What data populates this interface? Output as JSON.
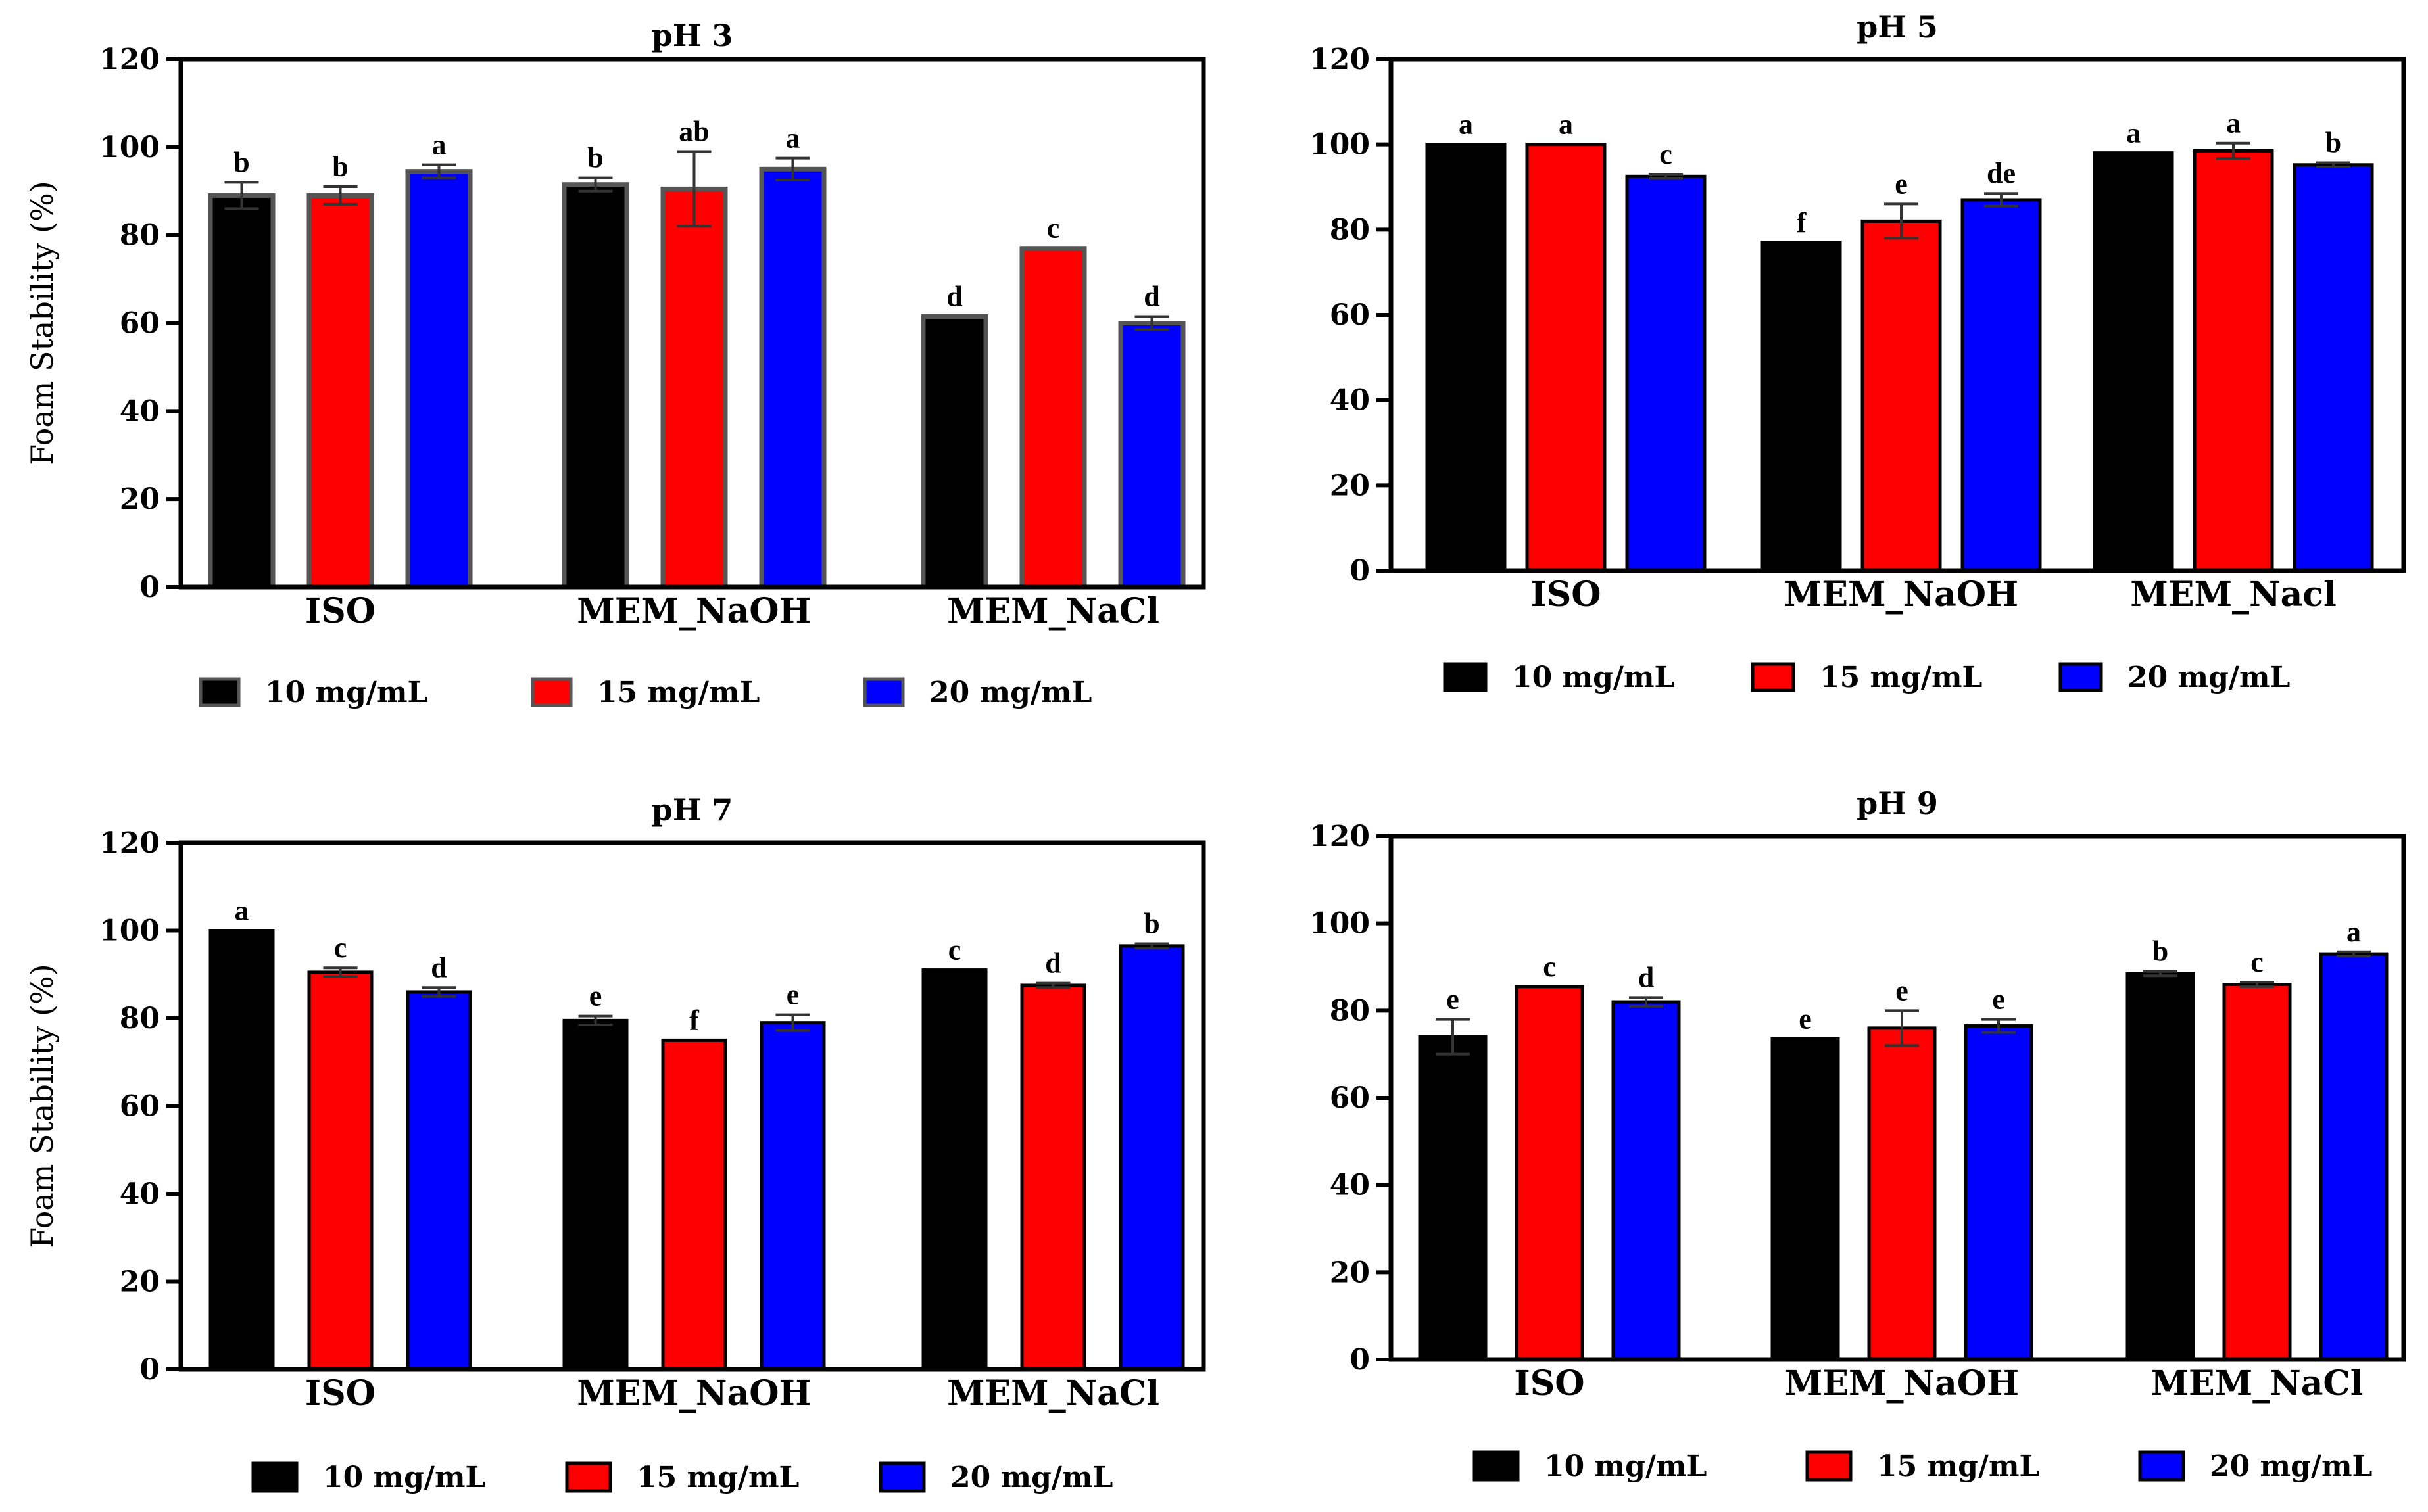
{
  "colors": {
    "s10": "#000000",
    "s15": "#ff0000",
    "s20": "#0000ff"
  },
  "chart_data": [
    {
      "type": "bar",
      "title": "pH 3",
      "ylabel": "Foam Stability (%)",
      "xlabel": "",
      "ylim": [
        0,
        120
      ],
      "yticks": [
        "0",
        "20",
        "40",
        "60",
        "80",
        "100",
        "120"
      ],
      "categories": [
        "ISO",
        "MEM_NaOH",
        "MEM_NaCl"
      ],
      "series": [
        {
          "name": "10 mg/mL",
          "values": [
            89,
            91.5,
            61.5
          ],
          "errors": [
            3,
            1.5,
            0
          ],
          "labels": [
            "b",
            "b",
            "d"
          ]
        },
        {
          "name": "15 mg/mL",
          "values": [
            89,
            90.5,
            77
          ],
          "errors": [
            2,
            8.5,
            0
          ],
          "labels": [
            "b",
            "ab",
            "c"
          ]
        },
        {
          "name": "20 mg/mL",
          "values": [
            94.5,
            95,
            60
          ],
          "errors": [
            1.5,
            2.5,
            1.5
          ],
          "labels": [
            "a",
            "a",
            "d"
          ]
        }
      ]
    },
    {
      "type": "bar",
      "title": "pH 5",
      "ylabel": "",
      "xlabel": "",
      "ylim": [
        0,
        120
      ],
      "yticks": [
        "0",
        "20",
        "40",
        "60",
        "80",
        "100",
        "120"
      ],
      "categories": [
        "ISO",
        "MEM_NaOH",
        "MEM_Nacl"
      ],
      "series": [
        {
          "name": "10 mg/mL",
          "values": [
            100,
            77,
            98
          ],
          "errors": [
            0,
            0,
            0
          ],
          "labels": [
            "a",
            "f",
            "a"
          ]
        },
        {
          "name": "15 mg/mL",
          "values": [
            100,
            82,
            98.5
          ],
          "errors": [
            0,
            4,
            1.8
          ],
          "labels": [
            "a",
            "e",
            "a"
          ]
        },
        {
          "name": "20 mg/mL",
          "values": [
            92.5,
            87,
            95.2
          ],
          "errors": [
            0.5,
            1.5,
            0.5
          ],
          "labels": [
            "c",
            "de",
            "b"
          ]
        }
      ]
    },
    {
      "type": "bar",
      "title": "pH 7",
      "ylabel": "Foam Stability (%)",
      "xlabel": "",
      "ylim": [
        0,
        120
      ],
      "yticks": [
        "0",
        "20",
        "40",
        "60",
        "80",
        "100",
        "120"
      ],
      "categories": [
        "ISO",
        "MEM_NaOH",
        "MEM_NaCl"
      ],
      "series": [
        {
          "name": "10 mg/mL",
          "values": [
            100,
            79.5,
            91
          ],
          "errors": [
            0,
            1,
            0
          ],
          "labels": [
            "a",
            "e",
            "c"
          ]
        },
        {
          "name": "15 mg/mL",
          "values": [
            90.5,
            75,
            87.5
          ],
          "errors": [
            1,
            0,
            0.5
          ],
          "labels": [
            "c",
            "f",
            "d"
          ]
        },
        {
          "name": "20 mg/mL",
          "values": [
            86,
            79,
            96.5
          ],
          "errors": [
            1,
            1.8,
            0.5
          ],
          "labels": [
            "d",
            "e",
            "b"
          ]
        }
      ]
    },
    {
      "type": "bar",
      "title": "pH 9",
      "ylabel": "",
      "xlabel": "",
      "ylim": [
        0,
        120
      ],
      "yticks": [
        "0",
        "20",
        "40",
        "60",
        "80",
        "100",
        "120"
      ],
      "categories": [
        "ISO",
        "MEM_NaOH",
        "MEM_NaCl"
      ],
      "series": [
        {
          "name": "10 mg/mL",
          "values": [
            74,
            73.5,
            88.5
          ],
          "errors": [
            4,
            0,
            0.5
          ],
          "labels": [
            "e",
            "e",
            "b"
          ]
        },
        {
          "name": "15 mg/mL",
          "values": [
            85.5,
            76,
            86
          ],
          "errors": [
            0,
            4,
            0.5
          ],
          "labels": [
            "c",
            "e",
            "c"
          ]
        },
        {
          "name": "20 mg/mL",
          "values": [
            82,
            76.5,
            93
          ],
          "errors": [
            1,
            1.5,
            0.5
          ],
          "labels": [
            "d",
            "e",
            "a"
          ]
        }
      ]
    }
  ]
}
